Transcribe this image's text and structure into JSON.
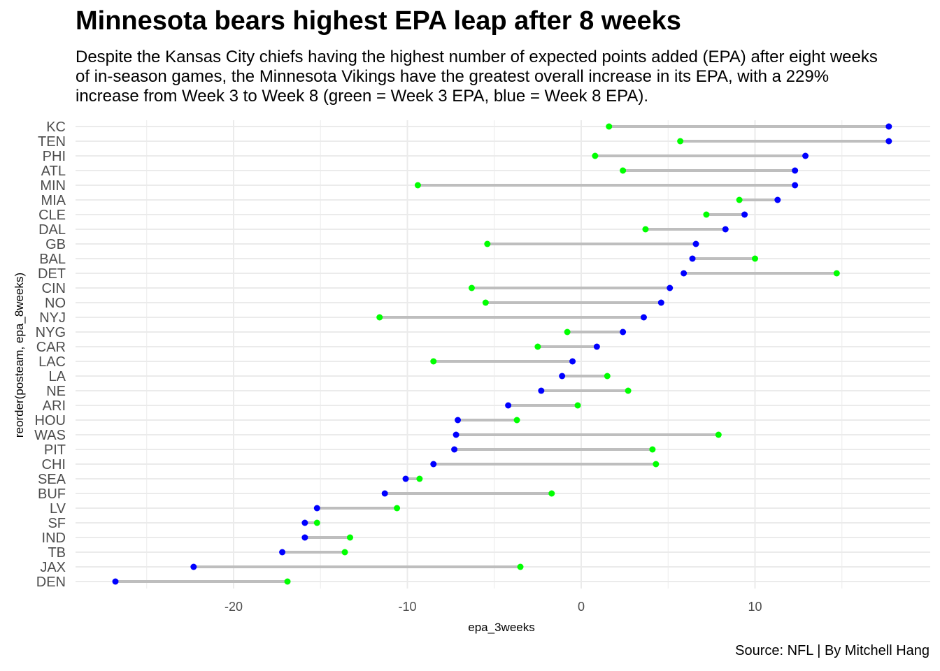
{
  "chart_data": {
    "type": "dumbbell",
    "title": "Minnesota bears highest EPA leap after 8 weeks",
    "subtitle_lines": [
      "Despite the Kansas City chiefs having the highest number of expected points added (EPA) after eight weeks",
      "of in-season games, the Minnesota Vikings have the greatest overall increase in its EPA, with a 229%",
      "increase from Week 3 to Week 8 (green = Week 3 EPA, blue = Week 8 EPA)."
    ],
    "caption": "Source: NFL | By Mitchell Hang",
    "xlabel": "epa_3weeks",
    "ylabel": "reorder(posteam, epa_8weeks)",
    "xlim": [
      -27,
      18
    ],
    "xticks": [
      -20,
      -10,
      0,
      10
    ],
    "grid": true,
    "colors": {
      "week3": "#00ff00",
      "week8": "#0000ff",
      "segment": "#bebebe",
      "grid": "#ebebeb"
    },
    "teams": [
      {
        "team": "KC",
        "epa_3weeks": 1.6,
        "epa_8weeks": 17.7
      },
      {
        "team": "TEN",
        "epa_3weeks": 5.7,
        "epa_8weeks": 17.7
      },
      {
        "team": "PHI",
        "epa_3weeks": 0.8,
        "epa_8weeks": 12.9
      },
      {
        "team": "ATL",
        "epa_3weeks": 2.4,
        "epa_8weeks": 12.3
      },
      {
        "team": "MIN",
        "epa_3weeks": -9.4,
        "epa_8weeks": 12.3
      },
      {
        "team": "MIA",
        "epa_3weeks": 9.1,
        "epa_8weeks": 11.3
      },
      {
        "team": "CLE",
        "epa_3weeks": 7.2,
        "epa_8weeks": 9.4
      },
      {
        "team": "DAL",
        "epa_3weeks": 3.7,
        "epa_8weeks": 8.3
      },
      {
        "team": "GB",
        "epa_3weeks": -5.4,
        "epa_8weeks": 6.6
      },
      {
        "team": "BAL",
        "epa_3weeks": 10.0,
        "epa_8weeks": 6.4
      },
      {
        "team": "DET",
        "epa_3weeks": 14.7,
        "epa_8weeks": 5.9
      },
      {
        "team": "CIN",
        "epa_3weeks": -6.3,
        "epa_8weeks": 5.1
      },
      {
        "team": "NO",
        "epa_3weeks": -5.5,
        "epa_8weeks": 4.6
      },
      {
        "team": "NYJ",
        "epa_3weeks": -11.6,
        "epa_8weeks": 3.6
      },
      {
        "team": "NYG",
        "epa_3weeks": -0.8,
        "epa_8weeks": 2.4
      },
      {
        "team": "CAR",
        "epa_3weeks": -2.5,
        "epa_8weeks": 0.9
      },
      {
        "team": "LAC",
        "epa_3weeks": -8.5,
        "epa_8weeks": -0.5
      },
      {
        "team": "LA",
        "epa_3weeks": 1.5,
        "epa_8weeks": -1.1
      },
      {
        "team": "NE",
        "epa_3weeks": 2.7,
        "epa_8weeks": -2.3
      },
      {
        "team": "ARI",
        "epa_3weeks": -0.2,
        "epa_8weeks": -4.2
      },
      {
        "team": "HOU",
        "epa_3weeks": -3.7,
        "epa_8weeks": -7.1
      },
      {
        "team": "WAS",
        "epa_3weeks": 7.9,
        "epa_8weeks": -7.2
      },
      {
        "team": "PIT",
        "epa_3weeks": 4.1,
        "epa_8weeks": -7.3
      },
      {
        "team": "CHI",
        "epa_3weeks": 4.3,
        "epa_8weeks": -8.5
      },
      {
        "team": "SEA",
        "epa_3weeks": -9.3,
        "epa_8weeks": -10.1
      },
      {
        "team": "BUF",
        "epa_3weeks": -1.7,
        "epa_8weeks": -11.3
      },
      {
        "team": "LV",
        "epa_3weeks": -10.6,
        "epa_8weeks": -15.2
      },
      {
        "team": "SF",
        "epa_3weeks": -15.2,
        "epa_8weeks": -15.9
      },
      {
        "team": "IND",
        "epa_3weeks": -13.3,
        "epa_8weeks": -15.9
      },
      {
        "team": "TB",
        "epa_3weeks": -13.6,
        "epa_8weeks": -17.2
      },
      {
        "team": "JAX",
        "epa_3weeks": -3.5,
        "epa_8weeks": -22.3
      },
      {
        "team": "DEN",
        "epa_3weeks": -16.9,
        "epa_8weeks": -26.8
      }
    ]
  }
}
